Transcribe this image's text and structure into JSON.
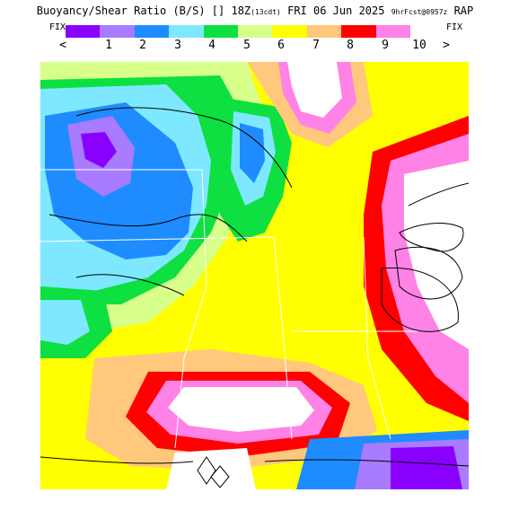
{
  "header": {
    "title_main": "Buoyancy/Shear Ratio (B/S) [] 18Z",
    "title_local": "(13cdt)",
    "title_date": "FRI 06 Jun 2025",
    "title_run": "9hrFcst@0957z",
    "title_model": "RAP"
  },
  "legend": {
    "fix_left": "FIX",
    "fix_right": "FIX",
    "less_symbol": "<",
    "greater_symbol": ">",
    "tick_labels": [
      "1",
      "2",
      "3",
      "4",
      "5",
      "6",
      "7",
      "8",
      "9",
      "10"
    ],
    "colors": [
      "#8a00ff",
      "#a87bff",
      "#1e8cff",
      "#7de8ff",
      "#0de040",
      "#d7ff8a",
      "#ffff00",
      "#ffc87d",
      "#ff0000",
      "#ff82e6"
    ]
  },
  "map": {
    "background": "#ffffff"
  }
}
